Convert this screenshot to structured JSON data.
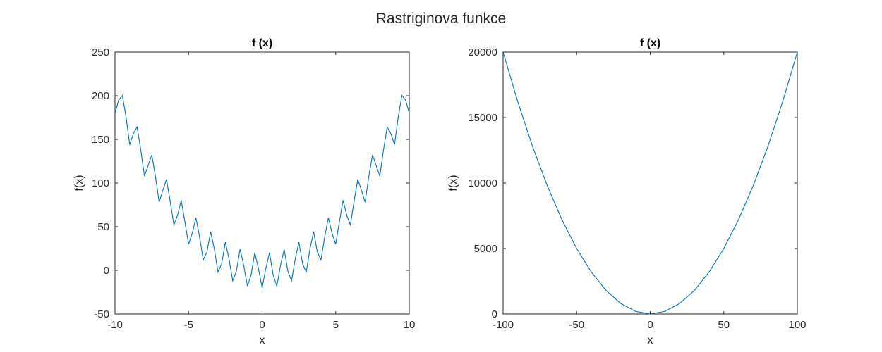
{
  "figure": {
    "title": "Rastriginova funkce"
  },
  "chart_data": [
    {
      "type": "line",
      "title": "f (x)",
      "xlabel": "x",
      "ylabel": "f(x)",
      "xlim": [
        -10,
        10
      ],
      "ylim": [
        -50,
        250
      ],
      "xticks": [
        -10,
        -5,
        0,
        5,
        10
      ],
      "yticks": [
        -50,
        0,
        50,
        100,
        150,
        200,
        250
      ],
      "grid": false,
      "color": "#0072BD",
      "series": [
        {
          "x": [
            -10,
            -9.75,
            -9.5,
            -9.25,
            -9,
            -8.75,
            -8.5,
            -8.25,
            -8,
            -7.75,
            -7.5,
            -7.25,
            -7,
            -6.75,
            -6.5,
            -6.25,
            -6,
            -5.75,
            -5.5,
            -5.25,
            -5,
            -4.75,
            -4.5,
            -4.25,
            -4,
            -3.75,
            -3.5,
            -3.25,
            -3,
            -2.75,
            -2.5,
            -2.25,
            -2,
            -1.75,
            -1.5,
            -1.25,
            -1,
            -0.75,
            -0.5,
            -0.25,
            0,
            0.25,
            0.5,
            0.75,
            1,
            1.25,
            1.5,
            1.75,
            2,
            2.25,
            2.5,
            2.75,
            3,
            3.25,
            3.5,
            3.75,
            4,
            4.25,
            4.5,
            4.75,
            5,
            5.25,
            5.5,
            5.75,
            6,
            6.25,
            6.5,
            6.75,
            7,
            7.25,
            7.5,
            7.75,
            8,
            8.25,
            8.5,
            8.75,
            9,
            9.25,
            9.5,
            9.75,
            10
          ],
          "y": [
            180,
            195.06,
            200.25,
            175.56,
            144,
            156.56,
            164.25,
            138.06,
            108,
            120.06,
            132.25,
            107.56,
            78,
            91.56,
            104.25,
            79.06,
            52,
            63.06,
            80.25,
            55.56,
            30,
            42.56,
            60.25,
            38.06,
            12,
            21.06,
            44.25,
            24.56,
            -2,
            7.56,
            32.25,
            13.06,
            -12,
            -0.94,
            24.25,
            5.56,
            -18,
            -5.44,
            20.25,
            2.06,
            -20,
            2.06,
            20.25,
            -5.44,
            -18,
            5.56,
            24.25,
            -0.94,
            -12,
            13.06,
            32.25,
            7.56,
            -2,
            24.56,
            44.25,
            21.06,
            12,
            38.06,
            60.25,
            42.56,
            30,
            55.56,
            80.25,
            63.06,
            52,
            79.06,
            104.25,
            91.56,
            78,
            107.56,
            132.25,
            120.06,
            108,
            138.06,
            164.25,
            156.56,
            144,
            175.56,
            200.25,
            195.06,
            180
          ]
        }
      ]
    },
    {
      "type": "line",
      "title": "f (x)",
      "xlabel": "x",
      "ylabel": "f(x)",
      "xlim": [
        -100,
        100
      ],
      "ylim": [
        0,
        20000
      ],
      "xticks": [
        -100,
        -50,
        0,
        50,
        100
      ],
      "yticks": [
        0,
        5000,
        10000,
        15000,
        20000
      ],
      "grid": false,
      "color": "#0072BD",
      "series": [
        {
          "x": [
            -100,
            -90,
            -80,
            -70,
            -60,
            -50,
            -40,
            -30,
            -20,
            -10,
            0,
            10,
            20,
            30,
            40,
            50,
            60,
            70,
            80,
            90,
            100
          ],
          "y": [
            20000,
            16200,
            12800,
            9800,
            7200,
            5000,
            3200,
            1800,
            800,
            200,
            0,
            200,
            800,
            1800,
            3200,
            5000,
            7200,
            9800,
            12800,
            16200,
            20000
          ]
        }
      ]
    }
  ]
}
